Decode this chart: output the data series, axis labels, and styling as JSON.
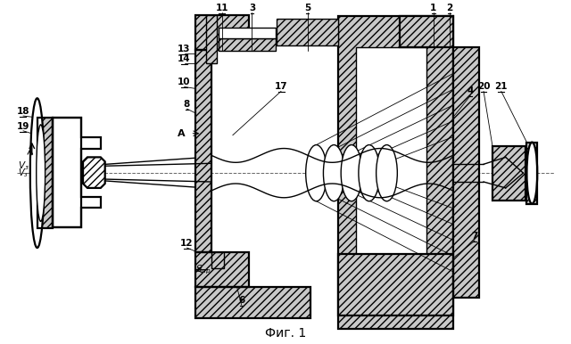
{
  "title": "Фиг. 1",
  "bg_color": "#ffffff",
  "line_color": "#000000",
  "figsize": [
    6.4,
    3.86
  ],
  "dpi": 100,
  "xlim": [
    0,
    640
  ],
  "ylim": [
    0,
    386
  ]
}
